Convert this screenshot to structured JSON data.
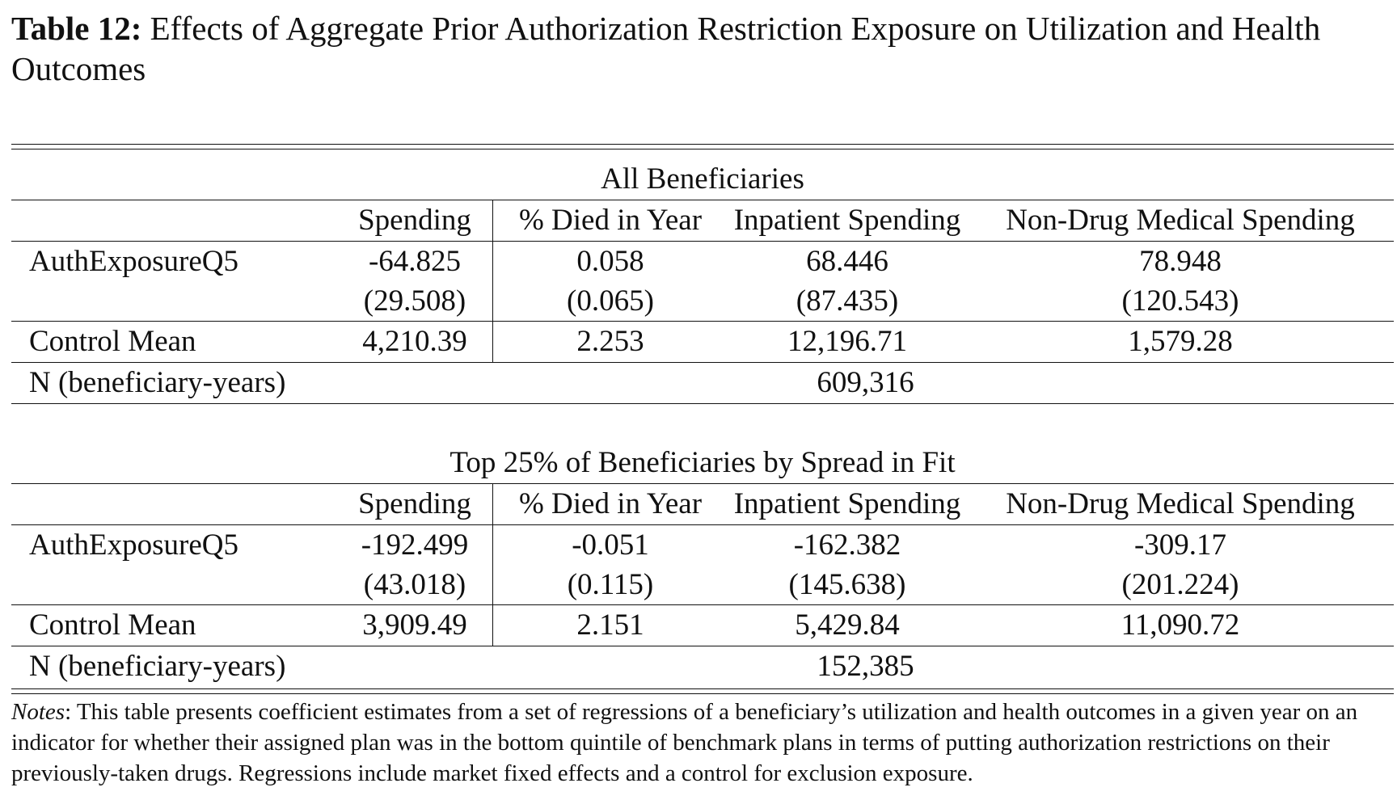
{
  "caption": {
    "label": "Table 12:",
    "title": "Effects of Aggregate Prior Authorization Restriction Exposure on Utilization and Health Outcomes"
  },
  "columns": [
    "Spending",
    "% Died in Year",
    "Inpatient Spending",
    "Non-Drug Medical Spending"
  ],
  "panels": [
    {
      "title": "All Beneficiaries",
      "coef_label": "AuthExposureQ5",
      "coef": [
        "-64.825",
        "0.058",
        "68.446",
        "78.948"
      ],
      "se": [
        "(29.508)",
        "(0.065)",
        "(87.435)",
        "(120.543)"
      ],
      "control_label": "Control Mean",
      "control": [
        "4,210.39",
        "2.253",
        "12,196.71",
        "1,579.28"
      ],
      "n_label": "N (beneficiary-years)",
      "n": "609,316"
    },
    {
      "title": "Top 25% of Beneficiaries by Spread in Fit",
      "coef_label": "AuthExposureQ5",
      "coef": [
        "-192.499",
        "-0.051",
        "-162.382",
        "-309.17"
      ],
      "se": [
        "(43.018)",
        "(0.115)",
        "(145.638)",
        "(201.224)"
      ],
      "control_label": "Control Mean",
      "control": [
        "3,909.49",
        "2.151",
        "5,429.84",
        "11,090.72"
      ],
      "n_label": "N (beneficiary-years)",
      "n": "152,385"
    }
  ],
  "notes": {
    "label": "Notes",
    "text": ": This table presents coefficient estimates from a set of regressions of a beneficiary’s utilization and health outcomes in a given year on an indicator for whether their assigned plan was in the bottom quintile of benchmark plans in terms of putting authorization restrictions on their previously-taken drugs. Regressions include market fixed effects and a control for exclusion exposure."
  }
}
